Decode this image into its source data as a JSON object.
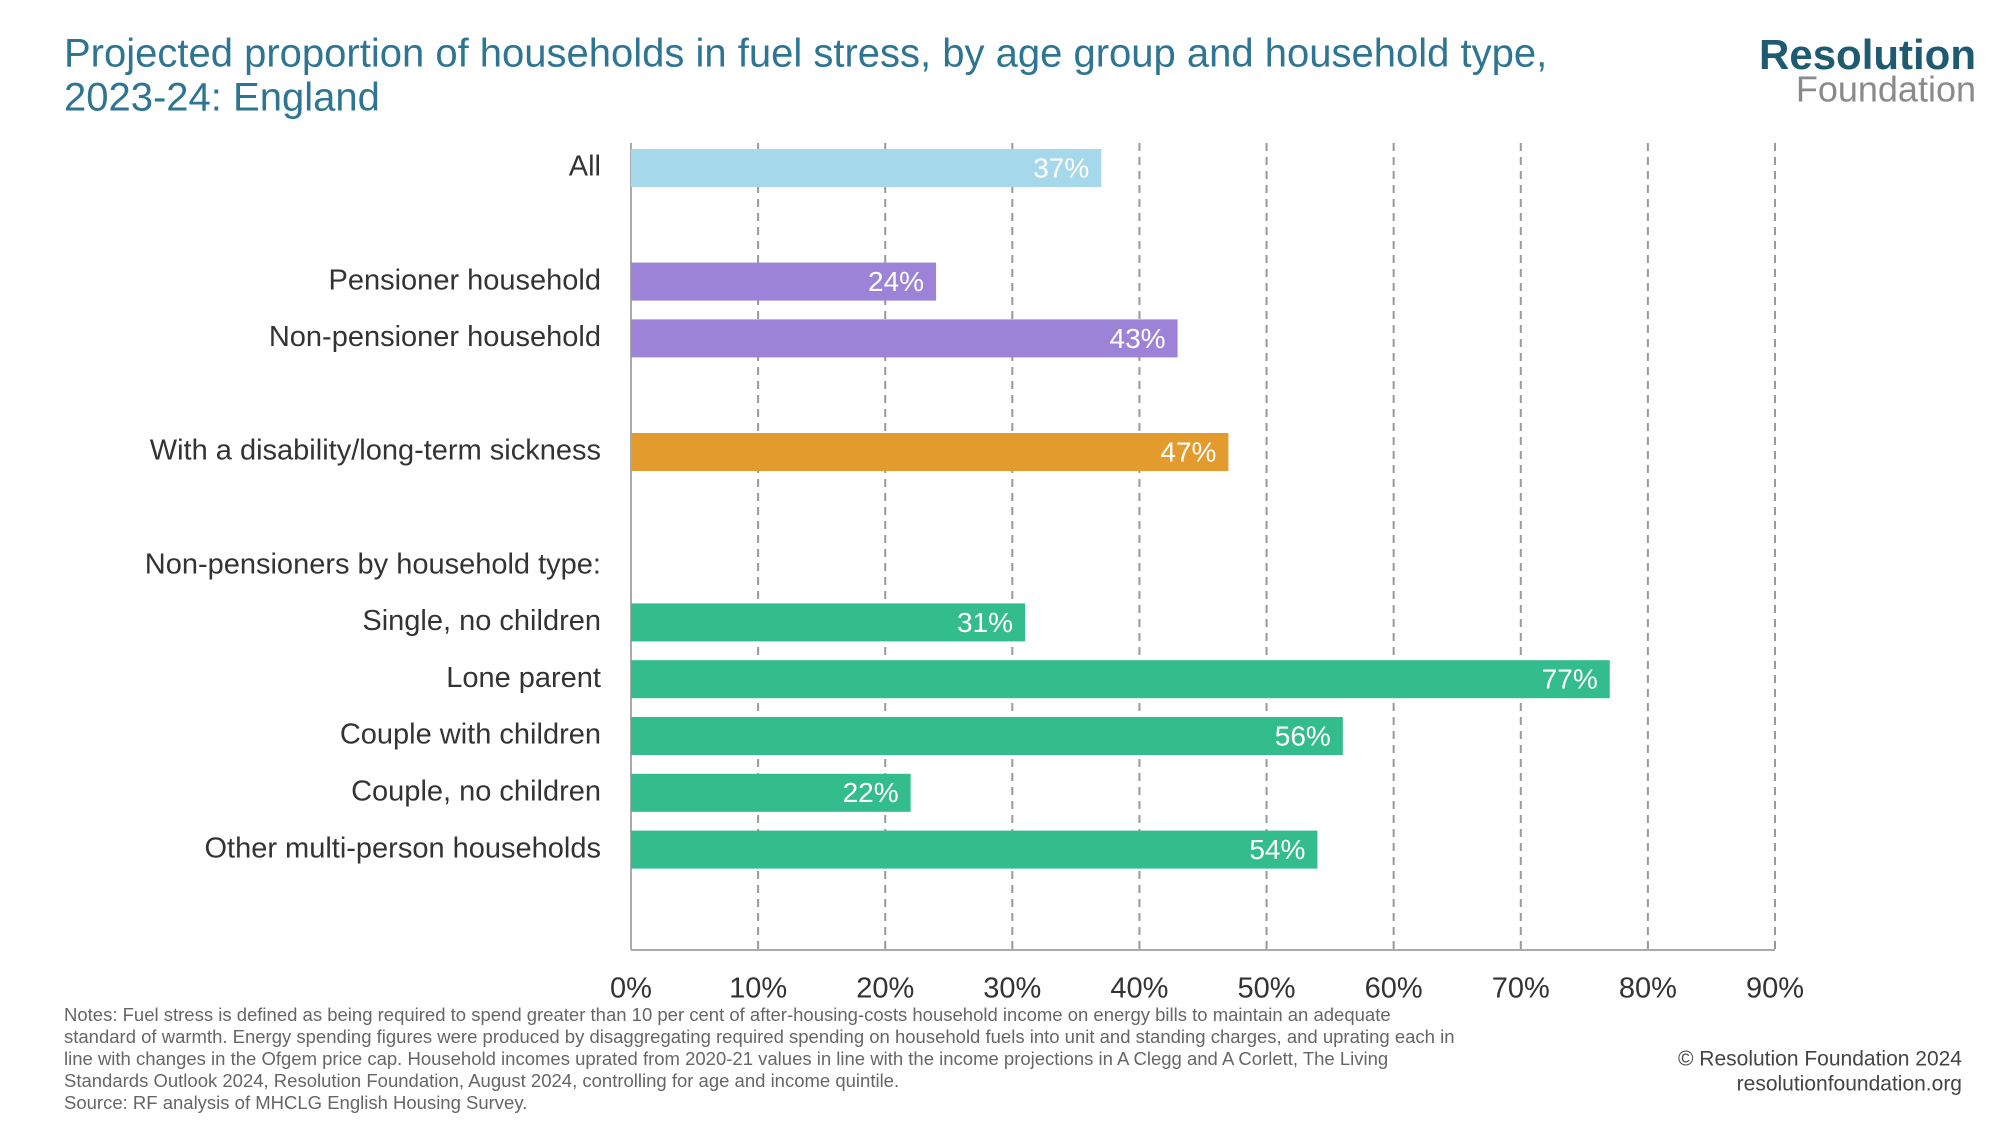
{
  "chart_data": {
    "type": "bar",
    "orientation": "horizontal",
    "title": "Projected proportion of households in fuel stress, by age group and household type,",
    "subtitle": "2023-24: England",
    "logo": [
      "Resolution",
      "Foundation"
    ],
    "categories": [
      "All",
      null,
      "Pensioner household",
      "Non-pensioner household",
      null,
      "With a disability/long-term sickness",
      null,
      "Non-pensioners by household type:",
      "Single, no children",
      "Lone parent",
      "Couple with children",
      "Couple, no children",
      "Other multi-person households"
    ],
    "values": [
      37,
      null,
      24,
      43,
      null,
      47,
      null,
      null,
      31,
      77,
      56,
      22,
      54
    ],
    "value_labels": [
      "37%",
      null,
      "24%",
      "43%",
      null,
      "47%",
      null,
      null,
      "31%",
      "77%",
      "56%",
      "22%",
      "54%"
    ],
    "colors": [
      "#a6d8ec",
      null,
      "#9c83d8",
      "#9c83d8",
      null,
      "#e29b2c",
      null,
      null,
      "#33bc8c",
      "#33bc8c",
      "#33bc8c",
      "#33bc8c",
      "#33bc8c"
    ],
    "xlim": [
      0,
      90
    ],
    "xticks": [
      {
        "value": 0,
        "label": "0%"
      },
      {
        "value": 10,
        "label": "10%"
      },
      {
        "value": 20,
        "label": "20%"
      },
      {
        "value": 30,
        "label": "30%"
      },
      {
        "value": 40,
        "label": "40%"
      },
      {
        "value": 50,
        "label": "50%"
      },
      {
        "value": 60,
        "label": "60%"
      },
      {
        "value": 70,
        "label": "70%"
      },
      {
        "value": 80,
        "label": "80%"
      },
      {
        "value": 90,
        "label": "90%"
      }
    ],
    "grid": true,
    "notes": [
      "Notes: Fuel stress is defined as being required to spend greater than 10 per cent of after-housing-costs household income on energy bills to maintain an adequate",
      "standard of warmth. Energy spending figures were produced by disaggregating required spending on household fuels into unit and standing charges, and uprating each in",
      "line with changes in the Ofgem price cap. Household incomes uprated from 2020-21 values in line with the income projections in A Clegg and A Corlett, The Living",
      "Standards Outlook 2024, Resolution Foundation, August 2024, controlling for age and income quintile.",
      "Source: RF analysis of MHCLG English Housing Survey."
    ],
    "credits": [
      "© Resolution Foundation 2024",
      "resolutionfoundation.org"
    ]
  }
}
